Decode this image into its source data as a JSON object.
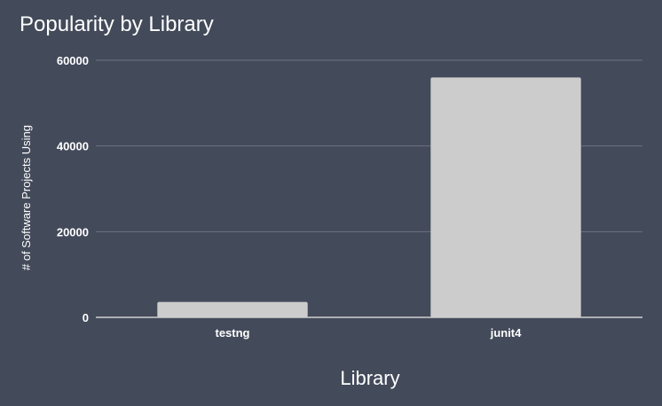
{
  "chart_data": {
    "type": "bar",
    "title": "Popularity by Library",
    "xlabel": "Library",
    "ylabel": "# of Software Projects Using",
    "categories": [
      "testng",
      "junit4"
    ],
    "values": [
      3600,
      56000
    ],
    "ylim": [
      0,
      60000
    ],
    "yticks": [
      0,
      20000,
      40000,
      60000
    ],
    "grid": true,
    "legend": "none",
    "colors": {
      "background": "#434a5a",
      "bar": "#cccccc",
      "grid": "#6b7282",
      "axis": "#d0d0d0",
      "text": "#ffffff"
    }
  }
}
